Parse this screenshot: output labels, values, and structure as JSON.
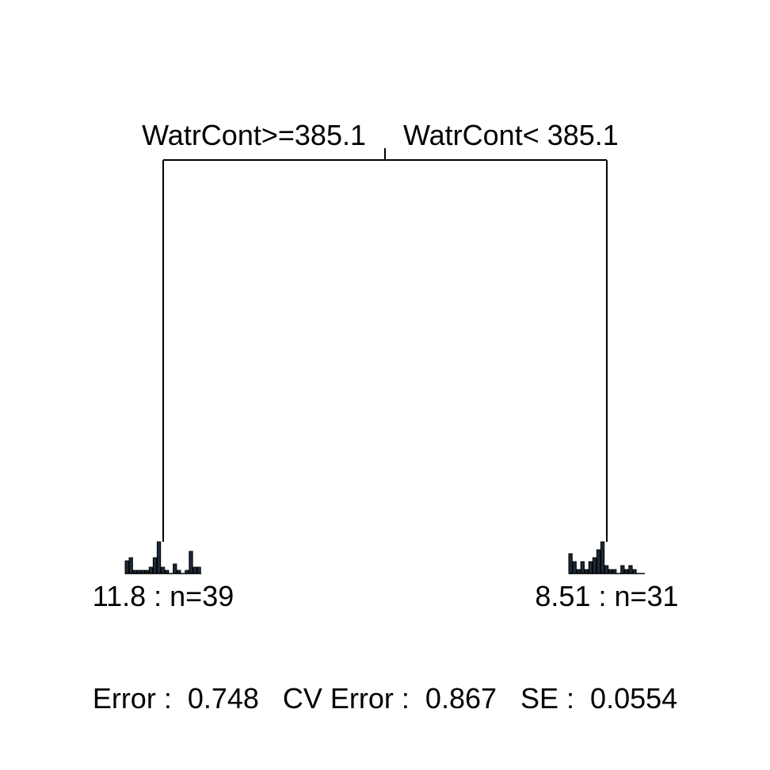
{
  "root": {
    "left_split_label": "WatrCont>=385.1",
    "right_split_label": "WatrCont< 385.1"
  },
  "leaves": [
    {
      "label": "11.8 : n=39",
      "histogram": [
        4,
        5,
        1,
        1,
        1,
        1,
        2,
        5,
        10,
        2,
        1,
        0,
        3,
        1,
        0,
        1,
        7,
        2,
        2
      ]
    },
    {
      "label": "8.51 : n=31",
      "histogram": [
        5,
        3,
        1,
        3,
        1,
        3,
        4,
        6,
        8,
        2,
        1,
        1,
        0,
        2,
        1,
        2,
        1,
        0,
        0
      ]
    }
  ],
  "footer": {
    "summary": "Error :  0.748   CV Error :  0.867   SE :  0.0554"
  },
  "colors": {
    "lines": "#000000",
    "histogram_fill": "#1c2a3a"
  }
}
